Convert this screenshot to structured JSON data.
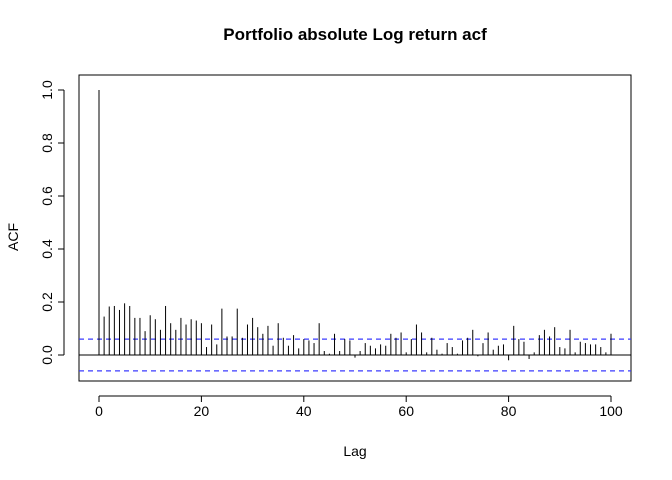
{
  "chart_data": {
    "type": "bar",
    "subtype": "acf",
    "title": "Portfolio absolute Log return acf",
    "xlabel": "Lag",
    "ylabel": "ACF",
    "xlim": [
      0,
      100
    ],
    "ylim": [
      -0.1,
      1.0
    ],
    "xticks": [
      "0",
      "20",
      "40",
      "60",
      "80",
      "100"
    ],
    "yticks": [
      "0.0",
      "0.2",
      "0.4",
      "0.6",
      "0.8",
      "1.0"
    ],
    "grid": false,
    "confidence_band": [
      -0.06,
      0.06
    ],
    "colors": {
      "bars": "#000000",
      "confidence": "#3b3bff",
      "zero_line": "#000000"
    },
    "lags": [
      0,
      1,
      2,
      3,
      4,
      5,
      6,
      7,
      8,
      9,
      10,
      11,
      12,
      13,
      14,
      15,
      16,
      17,
      18,
      19,
      20,
      21,
      22,
      23,
      24,
      25,
      26,
      27,
      28,
      29,
      30,
      31,
      32,
      33,
      34,
      35,
      36,
      37,
      38,
      39,
      40,
      41,
      42,
      43,
      44,
      45,
      46,
      47,
      48,
      49,
      50,
      51,
      52,
      53,
      54,
      55,
      56,
      57,
      58,
      59,
      60,
      61,
      62,
      63,
      64,
      65,
      66,
      67,
      68,
      69,
      70,
      71,
      72,
      73,
      74,
      75,
      76,
      77,
      78,
      79,
      80,
      81,
      82,
      83,
      84,
      85,
      86,
      87,
      88,
      89,
      90,
      91,
      92,
      93,
      94,
      95,
      96,
      97,
      98,
      99,
      100
    ],
    "values": [
      1.0,
      0.145,
      0.183,
      0.185,
      0.17,
      0.195,
      0.185,
      0.14,
      0.14,
      0.09,
      0.15,
      0.135,
      0.095,
      0.185,
      0.12,
      0.095,
      0.14,
      0.115,
      0.135,
      0.13,
      0.12,
      0.03,
      0.115,
      0.04,
      0.175,
      0.07,
      0.07,
      0.175,
      0.065,
      0.115,
      0.14,
      0.105,
      0.08,
      0.11,
      0.035,
      0.12,
      0.065,
      0.035,
      0.075,
      0.025,
      0.06,
      0.055,
      0.045,
      0.12,
      0.015,
      0.005,
      0.08,
      0.015,
      0.06,
      0.055,
      -0.01,
      0.015,
      0.045,
      0.035,
      0.025,
      0.04,
      0.035,
      0.08,
      0.065,
      0.085,
      0.01,
      0.06,
      0.115,
      0.085,
      0.01,
      0.065,
      0.02,
      0.005,
      0.045,
      0.03,
      0.005,
      0.055,
      0.065,
      0.095,
      -0.005,
      0.045,
      0.085,
      0.02,
      0.035,
      0.04,
      -0.02,
      0.11,
      0.06,
      0.05,
      -0.015,
      0.01,
      0.075,
      0.095,
      0.07,
      0.105,
      0.03,
      0.025,
      0.095,
      0.01,
      0.05,
      0.045,
      0.04,
      0.04,
      0.03,
      0.01,
      0.08
    ]
  }
}
